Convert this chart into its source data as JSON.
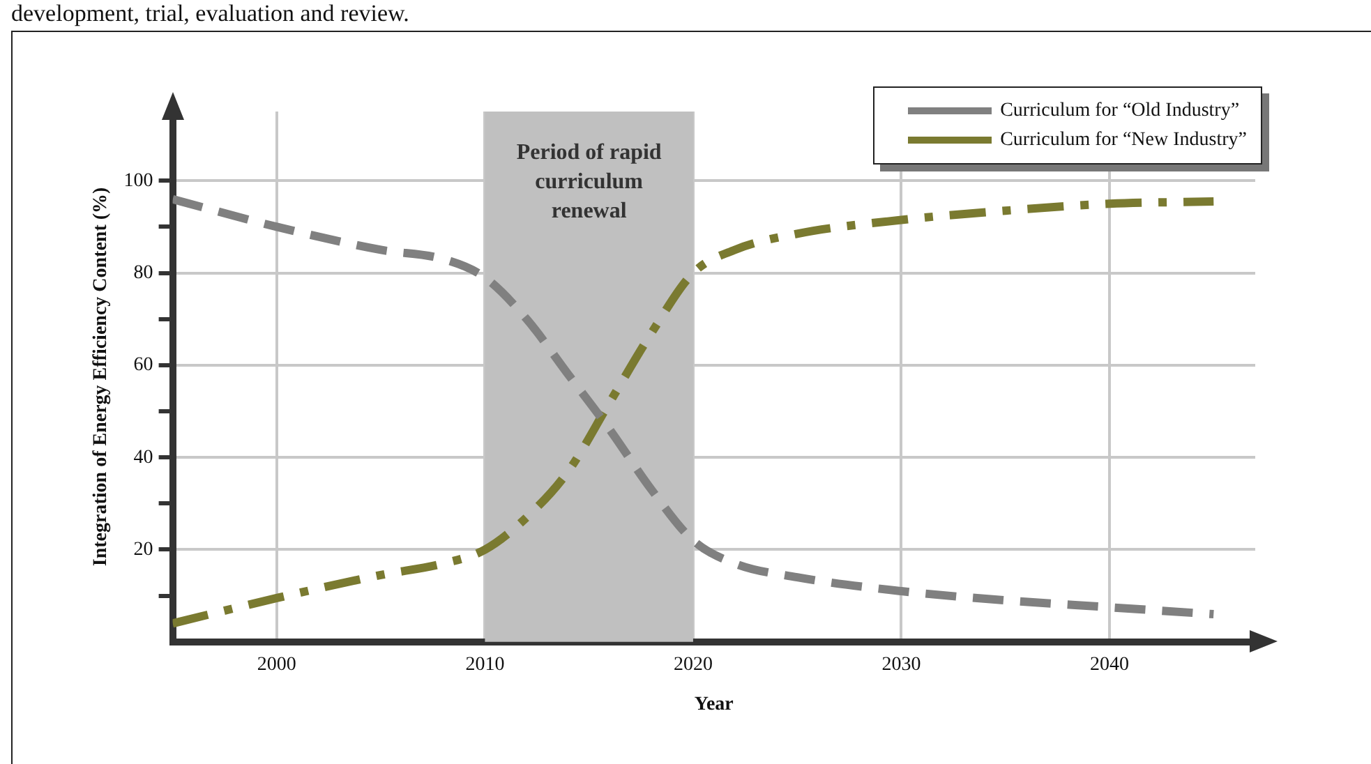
{
  "chart_data": {
    "type": "line",
    "xlabel": "Year",
    "ylabel": "Integration of Energy Efficiency Content (%)",
    "annotations": [
      "development, trial, evaluation and review."
    ],
    "xlim": [
      1995,
      2047
    ],
    "xticks": [
      2000,
      2010,
      2020,
      2030,
      2040
    ],
    "ylim": [
      0,
      115
    ],
    "yticks": [
      {
        "value": 10,
        "label": null
      },
      20,
      {
        "value": 30,
        "label": null
      },
      40,
      {
        "value": 50,
        "label": null
      },
      60,
      {
        "value": 70,
        "label": null
      },
      80,
      {
        "value": 90,
        "label": null
      },
      100
    ],
    "grid": true,
    "legend": "top right",
    "marker": "none",
    "bands": [
      {
        "axis": "x",
        "from": 2010,
        "to": 2020,
        "label": "Period of rapid curriculum renewal",
        "color": "#c0c0c0"
      }
    ],
    "x": [
      1995,
      2000,
      2005,
      2008,
      2010,
      2012,
      2014,
      2016,
      2018,
      2020,
      2022,
      2025,
      2030,
      2035,
      2040,
      2045
    ],
    "series": [
      {
        "name": "Curriculum for “Old Industry”",
        "color": "#808080",
        "line_style": "dashed",
        "values": [
          96,
          90,
          85,
          83,
          79,
          70,
          58,
          46,
          33,
          22,
          17,
          14,
          11,
          9,
          7.5,
          6
        ]
      },
      {
        "name": "Curriculum for “New Industry”",
        "color": "#7a7a30",
        "line_style": "dashdot",
        "values": [
          4,
          9.5,
          14.5,
          17,
          20,
          27,
          37,
          52,
          67,
          80,
          85,
          88.5,
          91.5,
          93.5,
          95,
          95.5
        ]
      }
    ]
  }
}
